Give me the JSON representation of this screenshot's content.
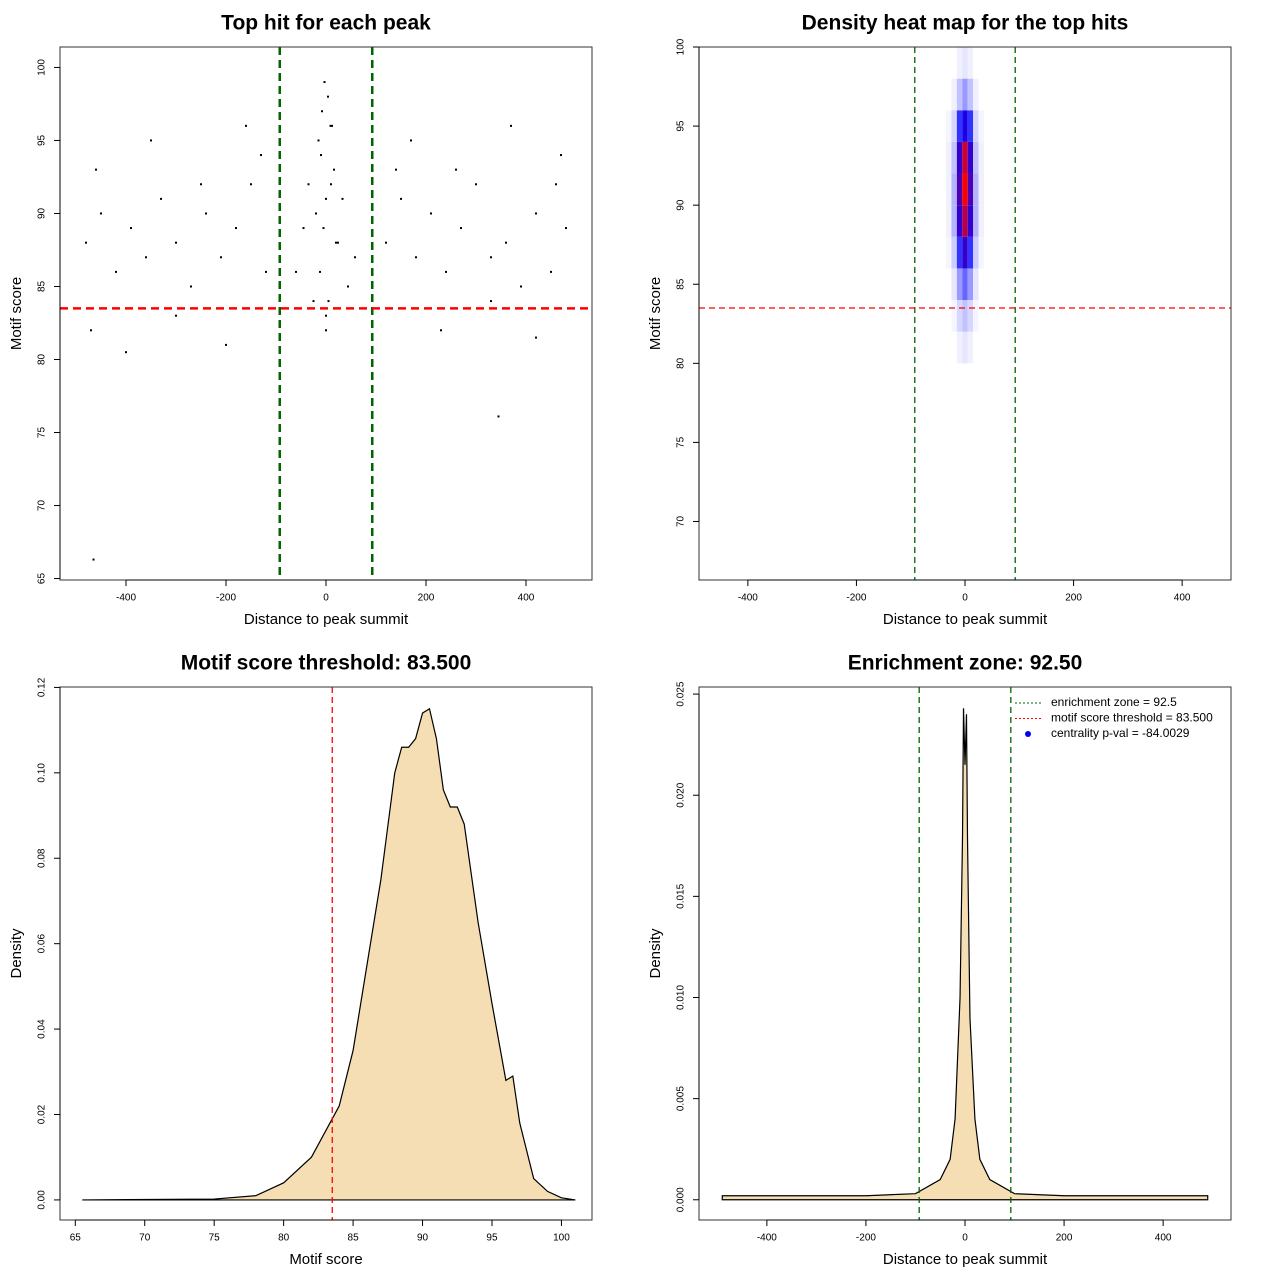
{
  "chart_data": [
    {
      "type": "scatter",
      "title": "Top hit for each peak",
      "xlabel": "Distance to peak summit",
      "ylabel": "Motif score",
      "x": [
        -480,
        -450,
        -420,
        -390,
        -360,
        -330,
        -300,
        -270,
        -240,
        -210,
        -180,
        -150,
        -120,
        120,
        150,
        180,
        210,
        240,
        270,
        300,
        330,
        360,
        390,
        420,
        450,
        480,
        -470,
        -400,
        -300,
        -200,
        -130,
        140,
        230,
        330,
        420,
        470,
        -460,
        -350,
        -250,
        -160,
        170,
        260,
        370,
        460,
        -60,
        -45,
        -35,
        -25,
        -15,
        -8,
        -3,
        0,
        4,
        9,
        16,
        24,
        33,
        44,
        58,
        -20,
        -10,
        0,
        10,
        20,
        -12,
        0,
        12,
        -5,
        5,
        -465,
        345
      ],
      "y": [
        88,
        90,
        86,
        89,
        87,
        91,
        88,
        85,
        90,
        87,
        89,
        92,
        86,
        88,
        91,
        87,
        90,
        86,
        89,
        92,
        87,
        88,
        85,
        90,
        86,
        89,
        82,
        80.5,
        83,
        81,
        94,
        93,
        82,
        84,
        81.5,
        94,
        93,
        95,
        92,
        96,
        95,
        93,
        96,
        92,
        86,
        89,
        92,
        84,
        95,
        97,
        99,
        83,
        98,
        96,
        93,
        88,
        91,
        85,
        87,
        90,
        94,
        82,
        92,
        88,
        86,
        91,
        96,
        89,
        84,
        66.3,
        76.1
      ],
      "color": "#000000",
      "xlim": [
        -532,
        532
      ],
      "ylim": [
        64.9,
        101.4
      ],
      "xticks": [
        -400,
        -200,
        0,
        200,
        400
      ],
      "yticks": [
        65,
        70,
        75,
        80,
        85,
        90,
        95,
        100
      ],
      "vlines": [
        {
          "value": -92.5,
          "color": "#006400"
        },
        {
          "value": 92.5,
          "color": "#006400"
        }
      ],
      "hlines": [
        {
          "value": 83.5,
          "color": "#ff0000"
        }
      ]
    },
    {
      "type": "heatmap",
      "title": "Density heat map for the top hits",
      "xlabel": "Distance to peak summit",
      "ylabel": "Motif score",
      "x": [
        -30,
        -20,
        -10,
        0,
        10,
        20,
        30
      ],
      "y": [
        81,
        83,
        85,
        87,
        89,
        91,
        93,
        95,
        97,
        99
      ],
      "values": [
        [
          0,
          0,
          0.03,
          0.05,
          0.03,
          0,
          0
        ],
        [
          0,
          0.02,
          0.08,
          0.12,
          0.08,
          0.02,
          0
        ],
        [
          0,
          0.05,
          0.2,
          0.3,
          0.2,
          0.05,
          0
        ],
        [
          0.02,
          0.1,
          0.4,
          0.6,
          0.4,
          0.1,
          0.02
        ],
        [
          0.03,
          0.15,
          0.6,
          0.85,
          0.6,
          0.15,
          0.03
        ],
        [
          0.03,
          0.15,
          0.65,
          1,
          0.65,
          0.15,
          0.03
        ],
        [
          0.03,
          0.12,
          0.6,
          0.9,
          0.6,
          0.12,
          0.03
        ],
        [
          0.02,
          0.08,
          0.4,
          0.55,
          0.4,
          0.08,
          0.02
        ],
        [
          0,
          0.03,
          0.12,
          0.2,
          0.12,
          0.03,
          0
        ],
        [
          0,
          0,
          0.03,
          0.05,
          0.03,
          0,
          0
        ]
      ],
      "color_scale": [
        "#ffffff",
        "#0000ff",
        "#ff0000"
      ],
      "xlim": [
        -490,
        490
      ],
      "ylim": [
        66.3,
        100
      ],
      "xticks": [
        -400,
        -200,
        0,
        200,
        400
      ],
      "yticks": [
        70,
        75,
        80,
        85,
        90,
        95,
        100
      ],
      "vlines": [
        {
          "value": -92.5,
          "color": "#006400"
        },
        {
          "value": 92.5,
          "color": "#006400"
        }
      ],
      "hlines": [
        {
          "value": 83.5,
          "color": "#ff0000"
        }
      ]
    },
    {
      "type": "area",
      "title": "Motif score threshold: 83.500",
      "xlabel": "Motif score",
      "ylabel": "Density",
      "x": [
        65.5,
        75,
        78,
        80,
        82,
        84,
        85,
        86,
        87,
        88,
        88.5,
        89,
        89.5,
        90,
        90.5,
        91,
        91.5,
        92,
        92.5,
        93,
        94,
        95,
        96,
        96.5,
        97,
        98,
        99,
        100,
        101
      ],
      "y": [
        0,
        0.0002,
        0.001,
        0.004,
        0.01,
        0.022,
        0.035,
        0.055,
        0.075,
        0.1,
        0.106,
        0.106,
        0.108,
        0.114,
        0.115,
        0.108,
        0.096,
        0.092,
        0.092,
        0.088,
        0.065,
        0.046,
        0.028,
        0.029,
        0.018,
        0.005,
        0.002,
        0.0005,
        0
      ],
      "color": "#f5deb3",
      "xlim": [
        63.9,
        102.2
      ],
      "ylim": [
        -0.0047,
        0.1201
      ],
      "xticks": [
        65,
        70,
        75,
        80,
        85,
        90,
        95,
        100
      ],
      "yticks": [
        {
          "value": 0,
          "label": "0.00"
        },
        {
          "value": 0.02,
          "label": "0.02"
        },
        {
          "value": 0.04,
          "label": "0.04"
        },
        {
          "value": 0.06,
          "label": "0.06"
        },
        {
          "value": 0.08,
          "label": "0.08"
        },
        {
          "value": 0.1,
          "label": "0.10"
        },
        {
          "value": 0.12,
          "label": "0.12"
        }
      ],
      "vlines": [
        {
          "value": 83.5,
          "color": "#ff0000"
        }
      ]
    },
    {
      "type": "area",
      "title": "Enrichment zone: 92.50",
      "xlabel": "Distance to peak summit",
      "ylabel": "Density",
      "x": [
        -490,
        -400,
        -300,
        -200,
        -100,
        -50,
        -30,
        -20,
        -10,
        -5,
        -3,
        0,
        3,
        5,
        10,
        20,
        30,
        50,
        100,
        200,
        300,
        400,
        490
      ],
      "y": [
        0.0002,
        0.0002,
        0.0002,
        0.0002,
        0.0003,
        0.001,
        0.002,
        0.004,
        0.01,
        0.018,
        0.0243,
        0.0215,
        0.024,
        0.018,
        0.009,
        0.004,
        0.002,
        0.001,
        0.0003,
        0.0002,
        0.0002,
        0.0002,
        0.0002
      ],
      "color": "#f5deb3",
      "xlim": [
        -537,
        537
      ],
      "ylim": [
        -0.001,
        0.02535
      ],
      "xticks": [
        -400,
        -200,
        0,
        200,
        400
      ],
      "yticks": [
        {
          "value": 0,
          "label": "0.000"
        },
        {
          "value": 0.005,
          "label": "0.005"
        },
        {
          "value": 0.01,
          "label": "0.010"
        },
        {
          "value": 0.015,
          "label": "0.015"
        },
        {
          "value": 0.02,
          "label": "0.020"
        },
        {
          "value": 0.025,
          "label": "0.025"
        }
      ],
      "vlines": [
        {
          "value": -92.5,
          "color": "#006400"
        },
        {
          "value": 92.5,
          "color": "#006400"
        }
      ],
      "legend_position": "topright",
      "legend": [
        {
          "label": "enrichment zone = 92.5",
          "color": "#006400",
          "marker": "line"
        },
        {
          "label": "motif score threshold = 83.500",
          "color": "#ff0000",
          "marker": "line"
        },
        {
          "label": "centrality p-val = -84.0029",
          "color": "#0000ff",
          "marker": "point"
        }
      ]
    }
  ]
}
